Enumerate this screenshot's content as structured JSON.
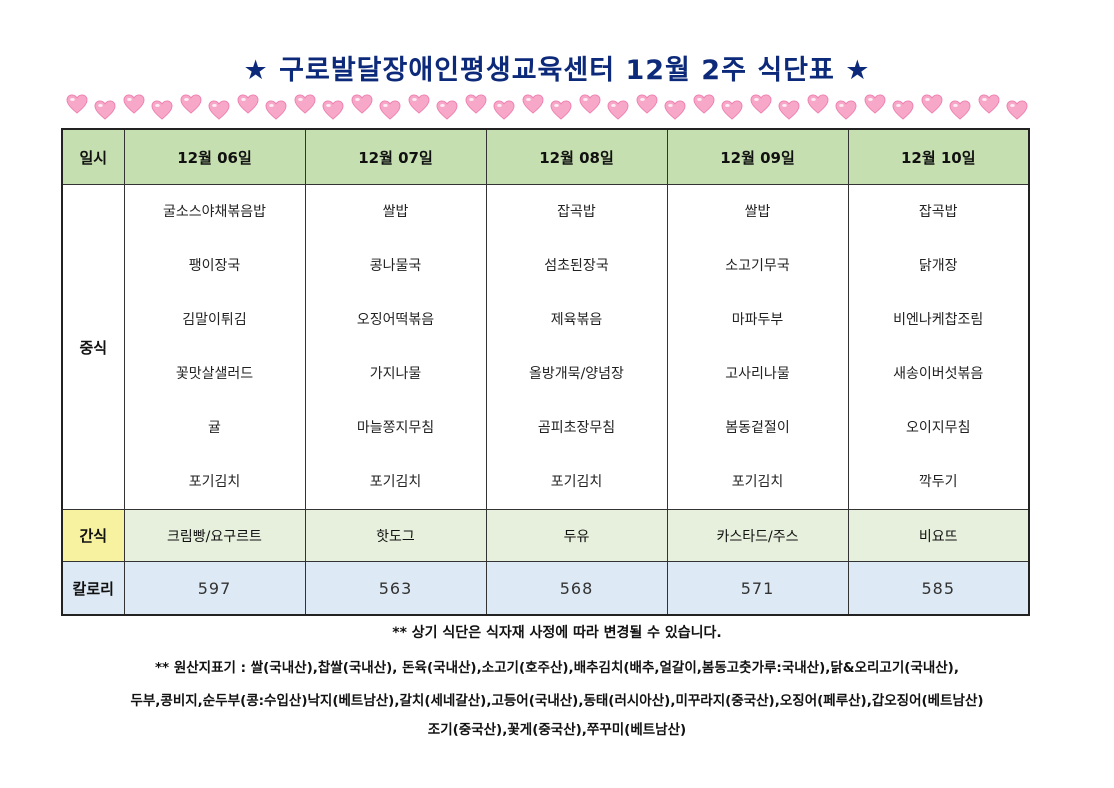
{
  "title": {
    "star_left": "★",
    "text": "구로발달장애인평생교육센터 12월 2주 식단표",
    "star_right": "★"
  },
  "icons": {
    "decoration": "heart-icon"
  },
  "table": {
    "header_label": "일시",
    "days": [
      "12월 06일",
      "12월 07일",
      "12월 08일",
      "12월 09일",
      "12월 10일"
    ],
    "lunch_label": "중식",
    "lunch": [
      [
        "굴소스야채볶음밥",
        "팽이장국",
        "김말이튀김",
        "꽃맛살샐러드",
        "귤",
        "포기김치"
      ],
      [
        "쌀밥",
        "콩나물국",
        "오징어떡볶음",
        "가지나물",
        "마늘쫑지무침",
        "포기김치"
      ],
      [
        "잡곡밥",
        "섬초된장국",
        "제육볶음",
        "올방개묵/양념장",
        "곰피초장무침",
        "포기김치"
      ],
      [
        "쌀밥",
        "소고기무국",
        "마파두부",
        "고사리나물",
        "봄동겉절이",
        "포기김치"
      ],
      [
        "잡곡밥",
        "닭개장",
        "비엔나케찹조림",
        "새송이버섯볶음",
        "오이지무침",
        "깍두기"
      ]
    ],
    "snack_label": "간식",
    "snack": [
      "크림빵/요구르트",
      "핫도그",
      "두유",
      "카스타드/주스",
      "비요뜨"
    ],
    "calorie_label": "칼로리",
    "calories": [
      "597",
      "563",
      "568",
      "571",
      "585"
    ]
  },
  "notes": {
    "line1": "** 상기 식단은 식자재 사정에 따라 변경될 수 있습니다.",
    "line2": "** 원산지표기 : 쌀(국내산),찹쌀(국내산), 돈육(국내산),소고기(호주산),배추김치(배추,얼갈이,봄동고춧가루:국내산),닭&오리고기(국내산),",
    "line3": "두부,콩비지,순두부(콩:수입산)낙지(베트남산),갈치(세네갈산),고등어(국내산),동태(러시아산),미꾸라지(중국산),오징어(페루산),갑오징어(베트남산)",
    "line4": "조기(중국산),꽃게(중국산),쭈꾸미(베트남산)"
  },
  "colors": {
    "title": "#0d2a7a",
    "header_bg": "#c6dfb0",
    "snack_bg": "#e6f0dc",
    "snack_label_bg": "#f7f2a0",
    "calorie_bg": "#dde9f4",
    "heart_fill": "#f7a8c8"
  }
}
